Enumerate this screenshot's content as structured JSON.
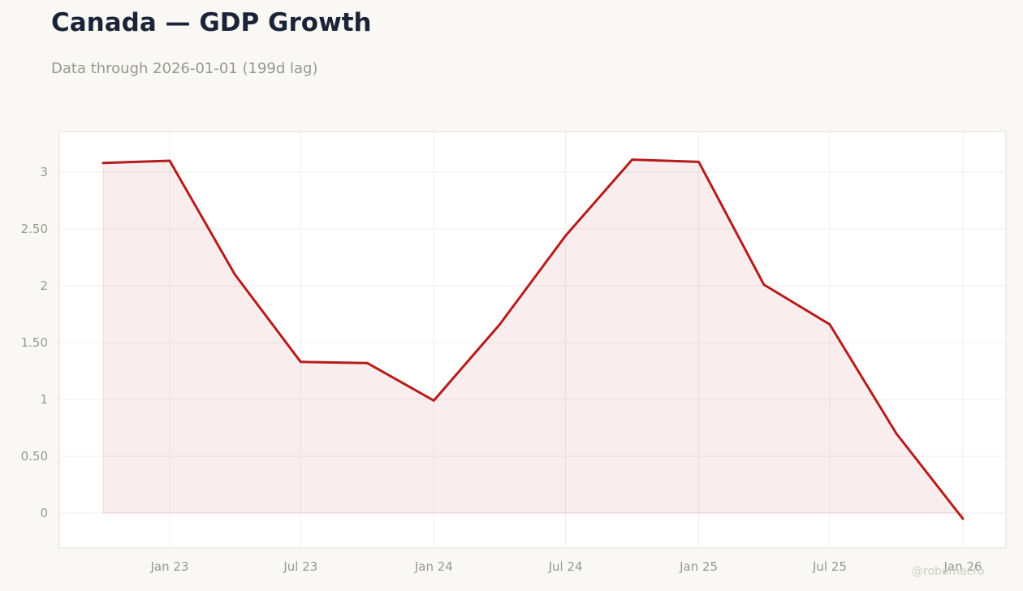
{
  "title": "Canada — GDP Growth",
  "subtitle": "Data through 2026-01-01 (199d lag)",
  "watermark": "@robomacro",
  "colors": {
    "line": "#b71c1c",
    "fill": "#b71c1c",
    "background": "#f9f8f5",
    "plot_background": "#ffffff",
    "grid": "#eeeeee",
    "tick_text": "#9a9792"
  },
  "chart_data": {
    "type": "area",
    "x": [
      "2022-10-01",
      "2023-01-01",
      "2023-04-01",
      "2023-07-01",
      "2023-10-01",
      "2024-01-01",
      "2024-04-01",
      "2024-07-01",
      "2024-10-01",
      "2025-01-01",
      "2025-04-01",
      "2025-07-01",
      "2025-10-01",
      "2026-01-01"
    ],
    "series": [
      {
        "values": [
          3.08,
          3.1,
          2.1,
          1.33,
          1.32,
          0.99,
          1.66,
          2.44,
          3.11,
          3.09,
          2.01,
          1.66,
          0.7,
          -0.05
        ]
      }
    ],
    "ylim": [
      -0.3,
      3.35
    ],
    "yticks": [
      0,
      0.5,
      1,
      1.5,
      2,
      2.5,
      3
    ],
    "ytick_labels": [
      "0",
      "0.50",
      "1",
      "1.50",
      "2",
      "2.50",
      "3"
    ],
    "xticks": [
      "2023-01-01",
      "2023-07-01",
      "2024-01-01",
      "2024-07-01",
      "2025-01-01",
      "2025-07-01",
      "2026-01-01"
    ],
    "xtick_labels": [
      "Jan 23",
      "Jul 23",
      "Jan 24",
      "Jul 24",
      "Jan 25",
      "Jul 25",
      "Jan 26"
    ],
    "grid": true,
    "legend": "none"
  }
}
